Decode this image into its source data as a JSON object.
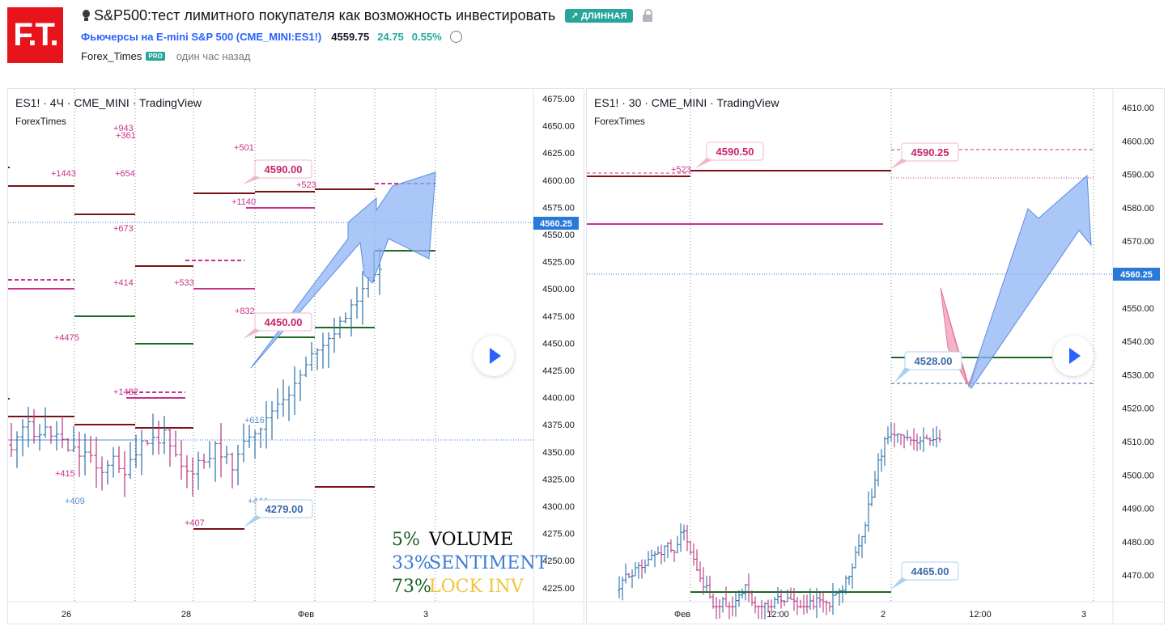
{
  "header": {
    "logo_text": "F.T.",
    "title": "S&P500:тест лимитного покупателя как возможность инвестировать",
    "badge": "↗ ДЛИННАЯ",
    "symbol_link": "Фьючерсы на E-mini S&P 500 (CME_MINI:ES1!)",
    "price": "4559.75",
    "change": "24.75",
    "change_pct": "0.55%",
    "author": "Forex_Times",
    "author_badge": "PRO",
    "time_ago": "один час назад"
  },
  "colors": {
    "up": "#26a69a",
    "link": "#2962ff",
    "resistance": "#7b1113",
    "support": "#1b6a1f",
    "pink": "#c8328a",
    "price_tag": "#2979d8",
    "arrow_blue": "#8fb4f5",
    "arrow_pink": "#f4a6be"
  },
  "left_chart": {
    "legend": "ES1! · 4Ч · CME_MINI · TradingView",
    "author": "ForexTimes",
    "price_axis": [
      "4675.00",
      "4650.00",
      "4625.00",
      "4600.00",
      "4575.00",
      "4550.00",
      "4525.00",
      "4500.00",
      "4475.00",
      "4450.00",
      "4425.00",
      "4400.00",
      "4375.00",
      "4350.00",
      "4325.00",
      "4300.00",
      "4275.00",
      "4250.00",
      "4225.00"
    ],
    "current_price": "4560.25",
    "time_axis": [
      "26",
      "28",
      "Фев",
      "3"
    ],
    "callouts": [
      "4590.00",
      "4450.00",
      "4279.00"
    ],
    "volume_labels": [
      "+943",
      "+361",
      "+1443",
      "+654",
      "+501",
      "+523",
      "+1140",
      "+673",
      "+414",
      "+533",
      "+832",
      "+4475",
      "+1482",
      "+616",
      "+415",
      "+409",
      "+407",
      "+444"
    ],
    "stats": [
      {
        "pct": "5%",
        "label": "VOLUME",
        "pct_color": "#1b5e20",
        "label_color": "#000000"
      },
      {
        "pct": "33%",
        "label": "SENTIMENT",
        "pct_color": "#3a7bd5",
        "label_color": "#3a7bd5"
      },
      {
        "pct": "73%",
        "label": "LOCK INV",
        "pct_color": "#1b5e20",
        "label_color": "#f0c43a"
      }
    ]
  },
  "right_chart": {
    "legend": "ES1! · 30 · CME_MINI · TradingView",
    "author": "ForexTimes",
    "price_axis": [
      "4610.00",
      "4600.00",
      "4590.00",
      "4580.00",
      "4570.00",
      "4560.00",
      "4550.00",
      "4540.00",
      "4530.00",
      "4520.00",
      "4510.00",
      "4500.00",
      "4490.00",
      "4480.00",
      "4470.00"
    ],
    "current_price": "4560.25",
    "time_axis": [
      "Фев",
      "12:00",
      "2",
      "12:00",
      "3"
    ],
    "callouts": [
      "4590.50",
      "4590.25",
      "4528.00",
      "4465.00"
    ],
    "volume_labels": [
      "+523"
    ]
  }
}
